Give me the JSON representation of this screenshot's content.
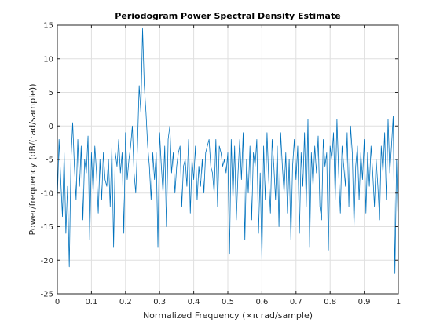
{
  "chart_data": {
    "type": "line",
    "title": "Periodogram Power Spectral Density Estimate",
    "xlabel": "Normalized Frequency  (×π rad/sample)",
    "ylabel": "Power/frequency (dB/(rad/sample))",
    "xlim": [
      0,
      1
    ],
    "ylim": [
      -25,
      15
    ],
    "xticks": [
      0,
      0.1,
      0.2,
      0.3,
      0.4,
      0.5,
      0.6,
      0.7,
      0.8,
      0.9,
      1
    ],
    "xtick_labels": [
      "0",
      "0.1",
      "0.2",
      "0.3",
      "0.4",
      "0.5",
      "0.6",
      "0.7",
      "0.8",
      "0.9",
      "1"
    ],
    "yticks": [
      -25,
      -20,
      -15,
      -10,
      -5,
      0,
      5,
      10,
      15
    ],
    "ytick_labels": [
      "-25",
      "-20",
      "-15",
      "-10",
      "-5",
      "0",
      "5",
      "10",
      "15"
    ],
    "grid": true,
    "line_color": "#0072bd",
    "series": [
      {
        "x": [
          0,
          0.005,
          0.01,
          0.015,
          0.02,
          0.025,
          0.03,
          0.035,
          0.04,
          0.045,
          0.05,
          0.055,
          0.06,
          0.065,
          0.07,
          0.075,
          0.08,
          0.085,
          0.09,
          0.095,
          0.1,
          0.105,
          0.11,
          0.115,
          0.12,
          0.125,
          0.13,
          0.135,
          0.14,
          0.145,
          0.15,
          0.155,
          0.16,
          0.165,
          0.17,
          0.175,
          0.18,
          0.185,
          0.19,
          0.195,
          0.2,
          0.205,
          0.21,
          0.215,
          0.22,
          0.225,
          0.23,
          0.235,
          0.24,
          0.245,
          0.25,
          0.255,
          0.26,
          0.265,
          0.27,
          0.275,
          0.28,
          0.285,
          0.29,
          0.295,
          0.3,
          0.305,
          0.31,
          0.315,
          0.32,
          0.325,
          0.33,
          0.335,
          0.34,
          0.345,
          0.35,
          0.355,
          0.36,
          0.365,
          0.37,
          0.375,
          0.38,
          0.385,
          0.39,
          0.395,
          0.4,
          0.405,
          0.41,
          0.415,
          0.42,
          0.425,
          0.43,
          0.435,
          0.44,
          0.445,
          0.45,
          0.455,
          0.46,
          0.465,
          0.47,
          0.475,
          0.48,
          0.485,
          0.49,
          0.495,
          0.5,
          0.505,
          0.51,
          0.515,
          0.52,
          0.525,
          0.53,
          0.535,
          0.54,
          0.545,
          0.55,
          0.555,
          0.56,
          0.565,
          0.57,
          0.575,
          0.58,
          0.585,
          0.59,
          0.595,
          0.6,
          0.605,
          0.61,
          0.615,
          0.62,
          0.625,
          0.63,
          0.635,
          0.64,
          0.645,
          0.65,
          0.655,
          0.66,
          0.665,
          0.67,
          0.675,
          0.68,
          0.685,
          0.69,
          0.695,
          0.7,
          0.705,
          0.71,
          0.715,
          0.72,
          0.725,
          0.73,
          0.735,
          0.74,
          0.745,
          0.75,
          0.755,
          0.76,
          0.765,
          0.77,
          0.775,
          0.78,
          0.785,
          0.79,
          0.795,
          0.8,
          0.805,
          0.81,
          0.815,
          0.82,
          0.825,
          0.83,
          0.835,
          0.84,
          0.845,
          0.85,
          0.855,
          0.86,
          0.865,
          0.87,
          0.875,
          0.88,
          0.885,
          0.89,
          0.895,
          0.9,
          0.905,
          0.91,
          0.915,
          0.92,
          0.925,
          0.93,
          0.935,
          0.94,
          0.945,
          0.95,
          0.955,
          0.96,
          0.965,
          0.97,
          0.975,
          0.98,
          0.985,
          0.99,
          0.995,
          1
        ],
        "y": [
          -11,
          -2,
          -8,
          -13.5,
          -4,
          -16,
          -9,
          -21,
          -5,
          0.5,
          -6,
          -11,
          -2,
          -9,
          -3,
          -14,
          -5,
          -7,
          -1.5,
          -17,
          -4,
          -10,
          -3,
          -7,
          -13,
          -5,
          -11,
          -4,
          -8,
          -9,
          -5,
          -12,
          -3,
          -18,
          -4,
          -6,
          -2,
          -7,
          -4,
          -16,
          -1,
          -8,
          -5,
          -3,
          0,
          -7,
          -10,
          -3,
          6,
          2,
          14.5,
          6,
          2,
          -3,
          -6,
          -11,
          -4,
          -8,
          -4,
          -18,
          -1,
          -6,
          -10,
          -3,
          -15,
          -2,
          0,
          -7,
          -4,
          -10,
          -6,
          -4,
          -3,
          -12,
          -6,
          -5,
          -9,
          -2,
          -13,
          -5,
          -8,
          -3,
          -11,
          -6,
          -9,
          -5,
          -10,
          -4,
          -3,
          -2,
          -6,
          -7,
          -10,
          -2,
          -12,
          -3,
          -4,
          -6,
          -5,
          -7,
          -4,
          -19,
          -2,
          -11,
          -3,
          -14,
          -7,
          -2,
          -8,
          -1,
          -17,
          -5,
          -10,
          -3,
          -14,
          -4,
          -6,
          -2,
          -16,
          -7,
          -20,
          -3,
          -11,
          -1,
          -8,
          -13,
          -2,
          -6,
          -11,
          -3,
          -15,
          -1,
          -6,
          -10,
          -4,
          -13,
          -5,
          -17,
          -6,
          -2,
          -8,
          -3,
          -16,
          -4,
          -9,
          -1,
          -12,
          1,
          -18,
          -4,
          -9,
          -3,
          -7,
          -1.5,
          -12,
          -14,
          -2,
          -6,
          -4,
          -18.5,
          -3,
          -5,
          -1,
          -11,
          1,
          -7,
          -13,
          -3,
          -6,
          -9,
          -1,
          -12,
          0,
          -4,
          -15,
          -6,
          -3,
          -11,
          -4,
          -8,
          -2,
          -13,
          -4,
          -9,
          -3,
          -7,
          -12,
          -5,
          -9,
          -14,
          -3,
          -7,
          -1,
          -11,
          1,
          -7,
          -3,
          1.5,
          -22,
          -5,
          -16
        ]
      }
    ]
  }
}
